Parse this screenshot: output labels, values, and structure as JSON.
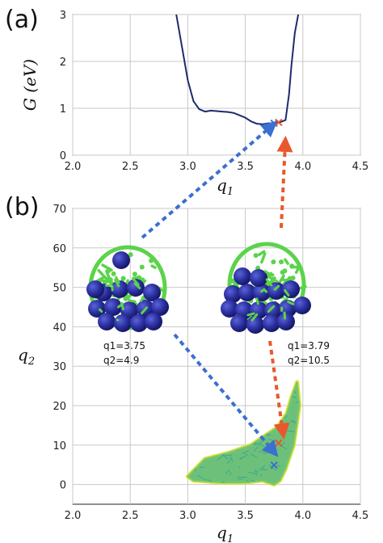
{
  "chart_data": [
    {
      "panel": "(a)",
      "type": "line",
      "xlabel": "q1",
      "ylabel": "G (eV)",
      "xlim": [
        2.0,
        4.5
      ],
      "ylim": [
        0,
        3
      ],
      "xticks": [
        "2.0",
        "2.5",
        "3.0",
        "3.5",
        "4.0",
        "4.5"
      ],
      "yticks": [
        "0",
        "1",
        "2",
        "3"
      ],
      "grid": true,
      "series": [
        {
          "color": "#1f2a6e",
          "x": [
            2.9,
            2.95,
            3.0,
            3.05,
            3.1,
            3.15,
            3.2,
            3.25,
            3.3,
            3.35,
            3.4,
            3.45,
            3.5,
            3.55,
            3.6,
            3.65,
            3.7,
            3.75,
            3.8,
            3.85,
            3.88,
            3.9,
            3.93,
            3.96
          ],
          "y": [
            3.0,
            2.3,
            1.6,
            1.15,
            0.98,
            0.93,
            0.95,
            0.94,
            0.93,
            0.92,
            0.9,
            0.85,
            0.8,
            0.72,
            0.67,
            0.66,
            0.68,
            0.68,
            0.7,
            0.75,
            1.3,
            1.9,
            2.6,
            3.0
          ]
        }
      ],
      "markers": [
        {
          "x": 3.75,
          "y": 0.68,
          "symbol": "x",
          "color": "#3b6fd1"
        },
        {
          "x": 3.79,
          "y": 0.7,
          "symbol": "x",
          "color": "#e8582c"
        }
      ]
    },
    {
      "panel": "(b)",
      "type": "scatter",
      "xlabel": "q1",
      "ylabel": "q2",
      "xlim": [
        2.0,
        4.5
      ],
      "ylim": [
        -5,
        70
      ],
      "xticks": [
        "2.0",
        "2.5",
        "3.0",
        "3.5",
        "4.0",
        "4.5"
      ],
      "yticks": [
        "0",
        "10",
        "20",
        "30",
        "40",
        "50",
        "60",
        "70"
      ],
      "grid": true,
      "outline": {
        "q1": [
          3.0,
          3.15,
          3.35,
          3.55,
          3.65,
          3.78,
          3.86,
          3.9,
          3.95,
          3.97,
          3.92,
          3.85,
          3.8,
          3.75,
          3.7,
          3.65,
          3.5,
          3.3,
          3.05,
          3.0
        ],
        "q2": [
          2.0,
          6.5,
          8.0,
          10.0,
          12.0,
          14.5,
          18.0,
          22.0,
          26.0,
          20.0,
          10.0,
          4.0,
          1.0,
          0.0,
          0.5,
          1.0,
          0.5,
          0.5,
          1.0,
          2.0
        ]
      },
      "markers": [
        {
          "x": 3.75,
          "y": 4.9,
          "symbol": "x",
          "color": "#3b6fd1"
        },
        {
          "x": 3.79,
          "y": 10.5,
          "symbol": "x",
          "color": "#e8582c"
        }
      ],
      "annotations": [
        {
          "line1": "q1=3.75",
          "line2": "q2=4.9"
        },
        {
          "line1": "q1=3.79",
          "line2": "q2=10.5"
        }
      ]
    }
  ],
  "colors": {
    "curve": "#1f2a6e",
    "blue_marker": "#3b6fd1",
    "orange_marker": "#e8582c",
    "cluster_green": "#5bd34a",
    "cluster_blue": "#2b2f9e",
    "density_yellow": "#dfe33a",
    "density_teal": "#2a9d9a"
  }
}
